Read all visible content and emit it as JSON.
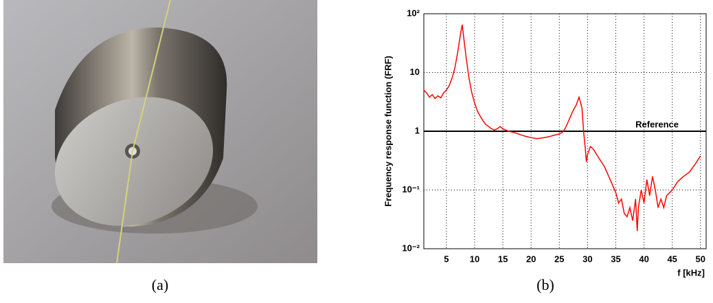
{
  "captions": [
    "(a)",
    "(b)"
  ],
  "chart_data": {
    "type": "line",
    "y_label": "Frequency response function (FRF)",
    "x_label": "f [kHz]",
    "log_y": true,
    "grid": true,
    "color": "#ff0000",
    "xlim": [
      1,
      51
    ],
    "xticks": [
      5,
      10,
      15,
      20,
      25,
      30,
      35,
      40,
      45,
      50
    ],
    "ylim": [
      0.01,
      100
    ],
    "yticks": [
      {
        "value": 0.01,
        "label": "10⁻²"
      },
      {
        "value": 0.1,
        "label": "10⁻¹"
      },
      1,
      10,
      {
        "value": 100,
        "label": "10²"
      }
    ],
    "reference_line": {
      "value": 1,
      "label": "Reference",
      "color": "#000000"
    },
    "x": [
      1,
      1.5,
      2,
      2.5,
      3,
      3.5,
      4,
      4.5,
      5,
      5.5,
      6,
      6.5,
      7,
      7.5,
      7.8,
      8,
      8.5,
      9,
      9.5,
      10,
      10.5,
      11,
      11.5,
      12,
      12.5,
      13,
      13.5,
      14,
      14.5,
      15,
      16,
      17,
      18,
      19,
      20,
      21,
      22,
      23,
      24,
      25,
      25.5,
      26,
      26.5,
      27,
      27.5,
      28,
      28.5,
      29,
      29.3,
      29.6,
      29.8,
      30,
      30.5,
      31,
      32,
      33,
      34,
      35,
      35.5,
      36,
      36.5,
      37,
      37.5,
      38,
      38.5,
      38.8,
      39,
      39.5,
      40,
      40.5,
      41,
      41.5,
      42,
      42.5,
      43,
      43.5,
      44,
      45,
      46,
      47,
      48,
      49,
      50
    ],
    "values": [
      5,
      4.5,
      3.8,
      4.2,
      3.6,
      4,
      3.7,
      4.5,
      5,
      6,
      8,
      12,
      22,
      45,
      65,
      45,
      18,
      8,
      4.5,
      3,
      2.2,
      1.8,
      1.5,
      1.3,
      1.2,
      1.1,
      1.05,
      1.1,
      1.2,
      1.1,
      1.0,
      0.95,
      0.88,
      0.82,
      0.78,
      0.75,
      0.77,
      0.8,
      0.85,
      0.9,
      0.95,
      1.1,
      1.4,
      1.8,
      2.3,
      2.8,
      3.8,
      2.5,
      1.0,
      0.5,
      0.3,
      0.4,
      0.55,
      0.5,
      0.35,
      0.25,
      0.15,
      0.09,
      0.06,
      0.07,
      0.04,
      0.035,
      0.05,
      0.03,
      0.07,
      0.02,
      0.05,
      0.1,
      0.06,
      0.15,
      0.08,
      0.17,
      0.1,
      0.05,
      0.07,
      0.05,
      0.08,
      0.1,
      0.14,
      0.17,
      0.2,
      0.27,
      0.38
    ]
  }
}
